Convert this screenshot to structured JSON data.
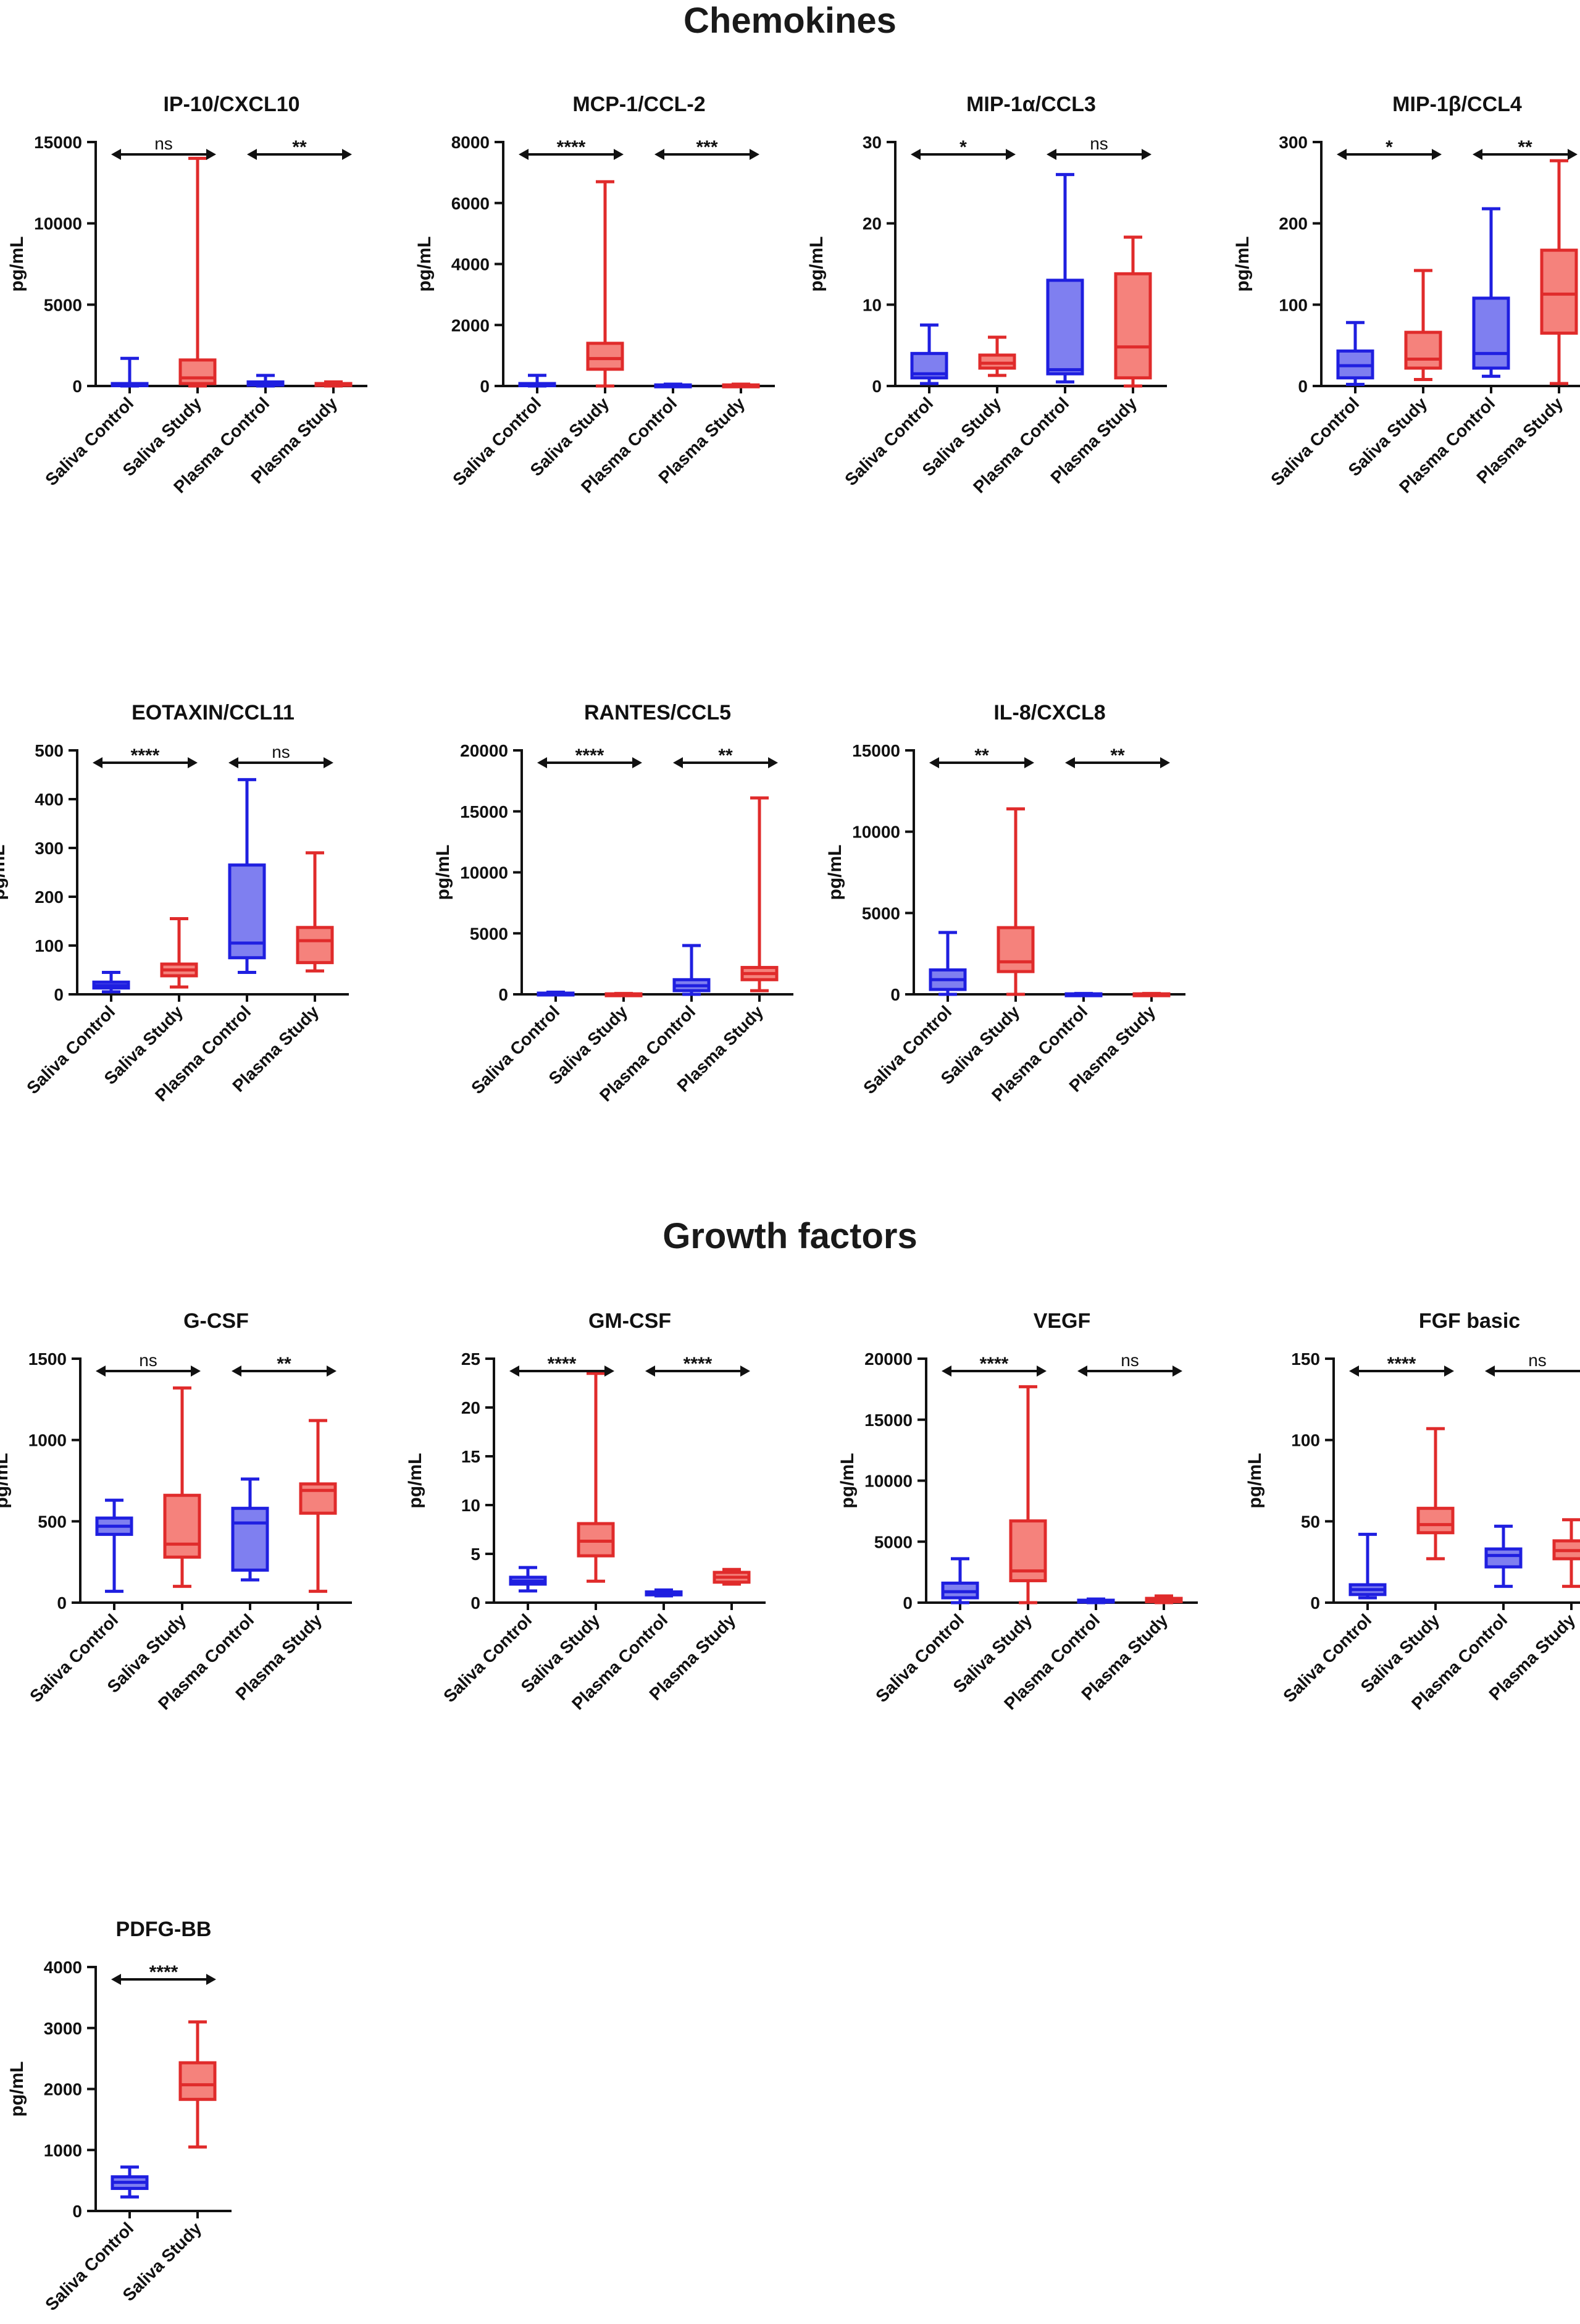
{
  "sections": {
    "chemokines": "Chemokines",
    "growth_factors": "Growth factors"
  },
  "colors": {
    "control_stroke": "#1f1fe0",
    "control_fill": "#7f7ff0",
    "study_stroke": "#e02b2b",
    "study_fill": "#f5827c",
    "axis": "#111111"
  },
  "chart_data": [
    {
      "type": "box",
      "title": "IP-10/CXCL10",
      "ylabel": "pg/mL",
      "ylim": [
        0,
        15000
      ],
      "yticks": [
        0,
        5000,
        10000,
        15000
      ],
      "categories": [
        "Saliva Control",
        "Saliva Study",
        "Plasma Control",
        "Plasma Study"
      ],
      "boxes": [
        {
          "group": "control",
          "min": 0,
          "q1": 20,
          "median": 60,
          "q3": 150,
          "max": 1700
        },
        {
          "group": "study",
          "min": 0,
          "q1": 150,
          "median": 500,
          "q3": 1600,
          "max": 14000
        },
        {
          "group": "control",
          "min": 0,
          "q1": 50,
          "median": 120,
          "q3": 250,
          "max": 650
        },
        {
          "group": "study",
          "min": 0,
          "q1": 40,
          "median": 80,
          "q3": 150,
          "max": 250
        }
      ],
      "comparisons": [
        {
          "from": 0,
          "to": 1,
          "label": "ns"
        },
        {
          "from": 2,
          "to": 3,
          "label": "**"
        }
      ]
    },
    {
      "type": "box",
      "title": "MCP-1/CCL-2",
      "ylabel": "pg/mL",
      "ylim": [
        0,
        8000
      ],
      "yticks": [
        0,
        2000,
        4000,
        6000,
        8000
      ],
      "categories": [
        "Saliva Control",
        "Saliva Study",
        "Plasma Control",
        "Plasma Study"
      ],
      "boxes": [
        {
          "group": "control",
          "min": 0,
          "q1": 10,
          "median": 30,
          "q3": 80,
          "max": 350
        },
        {
          "group": "study",
          "min": 0,
          "q1": 550,
          "median": 900,
          "q3": 1400,
          "max": 6700
        },
        {
          "group": "control",
          "min": 0,
          "q1": 10,
          "median": 20,
          "q3": 35,
          "max": 60
        },
        {
          "group": "study",
          "min": 0,
          "q1": 10,
          "median": 20,
          "q3": 35,
          "max": 60
        }
      ],
      "comparisons": [
        {
          "from": 0,
          "to": 1,
          "label": "****"
        },
        {
          "from": 2,
          "to": 3,
          "label": "***"
        }
      ]
    },
    {
      "type": "box",
      "title": "MIP-1α/CCL3",
      "ylabel": "pg/mL",
      "ylim": [
        0,
        30
      ],
      "yticks": [
        0,
        10,
        20,
        30
      ],
      "categories": [
        "Saliva Control",
        "Saliva Study",
        "Plasma Control",
        "Plasma Study"
      ],
      "boxes": [
        {
          "group": "control",
          "min": 0.3,
          "q1": 1,
          "median": 1.5,
          "q3": 4,
          "max": 7.5
        },
        {
          "group": "study",
          "min": 1.3,
          "q1": 2.2,
          "median": 2.8,
          "q3": 3.8,
          "max": 6
        },
        {
          "group": "control",
          "min": 0.5,
          "q1": 1.5,
          "median": 2,
          "q3": 13,
          "max": 26
        },
        {
          "group": "study",
          "min": 0,
          "q1": 1,
          "median": 4.8,
          "q3": 13.8,
          "max": 18.3
        }
      ],
      "comparisons": [
        {
          "from": 0,
          "to": 1,
          "label": "*"
        },
        {
          "from": 2,
          "to": 3,
          "label": "ns"
        }
      ]
    },
    {
      "type": "box",
      "title": "MIP-1β/CCL4",
      "ylabel": "pg/mL",
      "ylim": [
        0,
        300
      ],
      "yticks": [
        0,
        100,
        200,
        300
      ],
      "categories": [
        "Saliva Control",
        "Saliva Study",
        "Plasma Control",
        "Plasma Study"
      ],
      "boxes": [
        {
          "group": "control",
          "min": 2,
          "q1": 10,
          "median": 25,
          "q3": 43,
          "max": 78
        },
        {
          "group": "study",
          "min": 8,
          "q1": 22,
          "median": 33,
          "q3": 66,
          "max": 142
        },
        {
          "group": "control",
          "min": 12,
          "q1": 22,
          "median": 40,
          "q3": 108,
          "max": 218
        },
        {
          "group": "study",
          "min": 3,
          "q1": 65,
          "median": 113,
          "q3": 167,
          "max": 277
        }
      ],
      "comparisons": [
        {
          "from": 0,
          "to": 1,
          "label": "*"
        },
        {
          "from": 2,
          "to": 3,
          "label": "**"
        }
      ]
    },
    {
      "type": "box",
      "title": "EOTAXIN/CCL11",
      "ylabel": "pg/mL",
      "ylim": [
        0,
        500
      ],
      "yticks": [
        0,
        100,
        200,
        300,
        400,
        500
      ],
      "categories": [
        "Saliva Control",
        "Saliva Study",
        "Plasma Control",
        "Plasma Study"
      ],
      "boxes": [
        {
          "group": "control",
          "min": 5,
          "q1": 13,
          "median": 18,
          "q3": 25,
          "max": 45
        },
        {
          "group": "study",
          "min": 15,
          "q1": 38,
          "median": 50,
          "q3": 62,
          "max": 155
        },
        {
          "group": "control",
          "min": 45,
          "q1": 75,
          "median": 105,
          "q3": 265,
          "max": 440
        },
        {
          "group": "study",
          "min": 48,
          "q1": 65,
          "median": 110,
          "q3": 137,
          "max": 290
        }
      ],
      "comparisons": [
        {
          "from": 0,
          "to": 1,
          "label": "****"
        },
        {
          "from": 2,
          "to": 3,
          "label": "ns"
        }
      ]
    },
    {
      "type": "box",
      "title": "RANTES/CCL5",
      "ylabel": "pg/mL",
      "ylim": [
        0,
        20000
      ],
      "yticks": [
        0,
        5000,
        10000,
        15000,
        20000
      ],
      "categories": [
        "Saliva Control",
        "Saliva Study",
        "Plasma Control",
        "Plasma Study"
      ],
      "boxes": [
        {
          "group": "control",
          "min": 0,
          "q1": 20,
          "median": 50,
          "q3": 100,
          "max": 180
        },
        {
          "group": "study",
          "min": 0,
          "q1": 10,
          "median": 20,
          "q3": 40,
          "max": 70
        },
        {
          "group": "control",
          "min": 0,
          "q1": 300,
          "median": 700,
          "q3": 1200,
          "max": 4000
        },
        {
          "group": "study",
          "min": 300,
          "q1": 1200,
          "median": 1700,
          "q3": 2200,
          "max": 16100
        }
      ],
      "comparisons": [
        {
          "from": 0,
          "to": 1,
          "label": "****"
        },
        {
          "from": 2,
          "to": 3,
          "label": "**"
        }
      ]
    },
    {
      "type": "box",
      "title": "IL-8/CXCL8",
      "ylabel": "pg/mL",
      "ylim": [
        0,
        15000
      ],
      "yticks": [
        0,
        5000,
        10000,
        15000
      ],
      "categories": [
        "Saliva Control",
        "Saliva Study",
        "Plasma Control",
        "Plasma Study"
      ],
      "boxes": [
        {
          "group": "control",
          "min": 0,
          "q1": 300,
          "median": 900,
          "q3": 1500,
          "max": 3800
        },
        {
          "group": "study",
          "min": 0,
          "q1": 1400,
          "median": 2000,
          "q3": 4100,
          "max": 11400
        },
        {
          "group": "control",
          "min": 0,
          "q1": 10,
          "median": 20,
          "q3": 30,
          "max": 50
        },
        {
          "group": "study",
          "min": 0,
          "q1": 10,
          "median": 20,
          "q3": 30,
          "max": 50
        }
      ],
      "comparisons": [
        {
          "from": 0,
          "to": 1,
          "label": "**"
        },
        {
          "from": 2,
          "to": 3,
          "label": "**"
        }
      ]
    },
    {
      "type": "box",
      "title": "G-CSF",
      "ylabel": "pg/mL",
      "ylim": [
        0,
        1500
      ],
      "yticks": [
        0,
        500,
        1000,
        1500
      ],
      "categories": [
        "Saliva Control",
        "Saliva Study",
        "Plasma Control",
        "Plasma Study"
      ],
      "boxes": [
        {
          "group": "control",
          "min": 70,
          "q1": 420,
          "median": 470,
          "q3": 520,
          "max": 630
        },
        {
          "group": "study",
          "min": 100,
          "q1": 280,
          "median": 360,
          "q3": 660,
          "max": 1320
        },
        {
          "group": "control",
          "min": 140,
          "q1": 200,
          "median": 490,
          "q3": 580,
          "max": 760
        },
        {
          "group": "study",
          "min": 70,
          "q1": 550,
          "median": 690,
          "q3": 730,
          "max": 1120
        }
      ],
      "comparisons": [
        {
          "from": 0,
          "to": 1,
          "label": "ns"
        },
        {
          "from": 2,
          "to": 3,
          "label": "**"
        }
      ]
    },
    {
      "type": "box",
      "title": "GM-CSF",
      "ylabel": "pg/mL",
      "ylim": [
        0,
        25
      ],
      "yticks": [
        0,
        5,
        10,
        15,
        20,
        25
      ],
      "categories": [
        "Saliva Control",
        "Saliva Study",
        "Plasma Control",
        "Plasma Study"
      ],
      "boxes": [
        {
          "group": "control",
          "min": 1.2,
          "q1": 1.9,
          "median": 2.2,
          "q3": 2.6,
          "max": 3.6
        },
        {
          "group": "study",
          "min": 2.2,
          "q1": 4.8,
          "median": 6.3,
          "q3": 8.1,
          "max": 23.5
        },
        {
          "group": "control",
          "min": 0.7,
          "q1": 0.8,
          "median": 1.0,
          "q3": 1.1,
          "max": 1.3
        },
        {
          "group": "study",
          "min": 1.9,
          "q1": 2.1,
          "median": 2.6,
          "q3": 3.1,
          "max": 3.4
        }
      ],
      "comparisons": [
        {
          "from": 0,
          "to": 1,
          "label": "****"
        },
        {
          "from": 2,
          "to": 3,
          "label": "****"
        }
      ]
    },
    {
      "type": "box",
      "title": "VEGF",
      "ylabel": "pg/mL",
      "ylim": [
        0,
        20000
      ],
      "yticks": [
        0,
        5000,
        10000,
        15000,
        20000
      ],
      "categories": [
        "Saliva Control",
        "Saliva Study",
        "Plasma Control",
        "Plasma Study"
      ],
      "boxes": [
        {
          "group": "control",
          "min": 0,
          "q1": 400,
          "median": 900,
          "q3": 1600,
          "max": 3600
        },
        {
          "group": "study",
          "min": 0,
          "q1": 1800,
          "median": 2600,
          "q3": 6700,
          "max": 17700
        },
        {
          "group": "control",
          "min": 0,
          "q1": 50,
          "median": 100,
          "q3": 200,
          "max": 300
        },
        {
          "group": "study",
          "min": 0,
          "q1": 80,
          "median": 200,
          "q3": 350,
          "max": 550
        }
      ],
      "comparisons": [
        {
          "from": 0,
          "to": 1,
          "label": "****"
        },
        {
          "from": 2,
          "to": 3,
          "label": "ns"
        }
      ]
    },
    {
      "type": "box",
      "title": "FGF basic",
      "ylabel": "pg/mL",
      "ylim": [
        0,
        150
      ],
      "yticks": [
        0,
        50,
        100,
        150
      ],
      "categories": [
        "Saliva Control",
        "Saliva Study",
        "Plasma Control",
        "Plasma Study"
      ],
      "boxes": [
        {
          "group": "control",
          "min": 3,
          "q1": 5,
          "median": 8,
          "q3": 11,
          "max": 42
        },
        {
          "group": "study",
          "min": 27,
          "q1": 43,
          "median": 48,
          "q3": 58,
          "max": 107
        },
        {
          "group": "control",
          "min": 10,
          "q1": 22,
          "median": 29,
          "q3": 33,
          "max": 47
        },
        {
          "group": "study",
          "min": 10,
          "q1": 27,
          "median": 32,
          "q3": 38,
          "max": 51
        }
      ],
      "comparisons": [
        {
          "from": 0,
          "to": 1,
          "label": "****"
        },
        {
          "from": 2,
          "to": 3,
          "label": "ns"
        }
      ]
    },
    {
      "type": "box",
      "title": "PDFG-BB",
      "ylabel": "pg/mL",
      "ylim": [
        0,
        4000
      ],
      "yticks": [
        0,
        1000,
        2000,
        3000,
        4000
      ],
      "categories": [
        "Saliva Control",
        "Saliva Study"
      ],
      "boxes": [
        {
          "group": "control",
          "min": 230,
          "q1": 370,
          "median": 470,
          "q3": 560,
          "max": 720
        },
        {
          "group": "study",
          "min": 1050,
          "q1": 1830,
          "median": 2070,
          "q3": 2430,
          "max": 3100
        }
      ],
      "comparisons": [
        {
          "from": 0,
          "to": 1,
          "label": "****"
        }
      ]
    }
  ]
}
